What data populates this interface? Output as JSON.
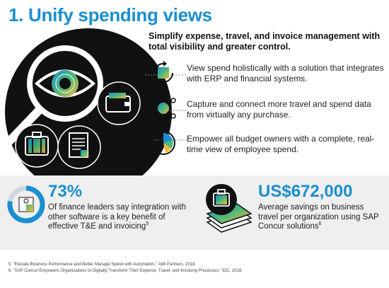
{
  "header": {
    "title": "1. Unify spending views"
  },
  "intro": {
    "subtitle": "Simplify expense, travel, and invoice management with total visibility and greater control."
  },
  "features": [
    {
      "icon": "integration-cycle-icon",
      "text": "View spend holistically with a solution that integrates with ERP and financial systems."
    },
    {
      "icon": "data-network-icon",
      "text": "Capture and connect more travel and spend data from virtually any purchase."
    },
    {
      "icon": "realtime-clock-icon",
      "text": "Empower all budget owners with a complete, real-time view of employee spend."
    }
  ],
  "stats": [
    {
      "value": "73%",
      "text": "Of finance leaders say integration with other software is a key benefit of effective T&E and invoicing",
      "sup": "5"
    },
    {
      "value": "US$672,000",
      "text": "Average savings on business travel per organization using SAP Concur solutions",
      "sup": "6"
    }
  ],
  "footnotes": [
    "5. \"Elevate Business Performance and Better Manage Spend with Automation,\" AMI Partners, 2018.",
    "6. \"SAP Concur Empowers Organizations to Digitally Transform Their Expense, Travel, and Invoicing Processes,\" IDC, 2018."
  ],
  "colors": {
    "accent": "#1a8fd0",
    "dark": "#111111",
    "yellow": "#f2b83a",
    "green": "#4db87a"
  }
}
